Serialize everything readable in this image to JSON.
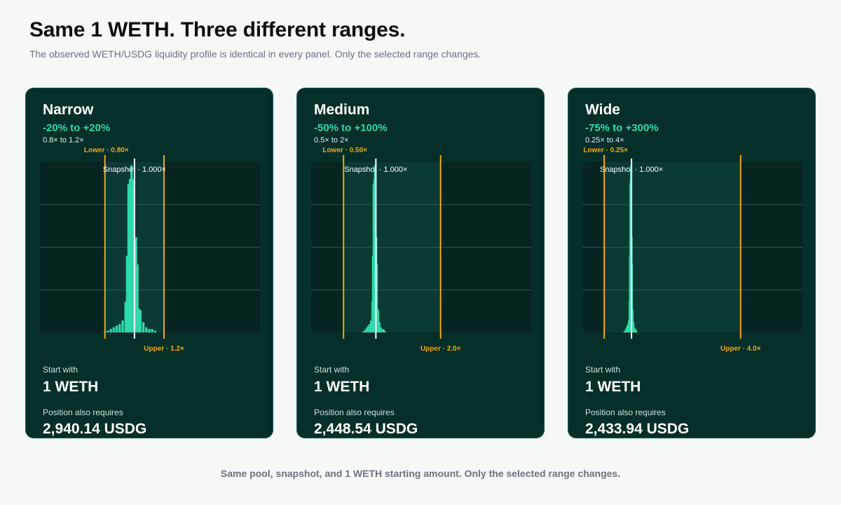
{
  "title": "Same 1 WETH. Three different ranges.",
  "subtitle": "The observed WETH/USDG liquidity profile is identical in every panel. Only the selected range changes.",
  "footer": "Same pool, snapshot, and 1 WETH starting amount. Only the selected range changes.",
  "colors": {
    "page_bg": "#f6f8f7",
    "panel_bg": "#062f29",
    "plot_bg": "#062420",
    "in_range_bg": "#0b3a33",
    "bar": "#2fd9ac",
    "range_line": "#f0a81c",
    "snapshot_line": "#ffffff",
    "accent_text": "#2fd9ac"
  },
  "chart_data": [
    {
      "type": "bar",
      "name": "Narrow",
      "range_pct": "-20% to +20%",
      "range_mult": "0.8× to 1.2×",
      "lower": 0.8,
      "upper": 1.2,
      "snapshot": 1.0,
      "lower_label": "Lower · 0.80×",
      "upper_label": "Upper · 1.2×",
      "snapshot_label": "Snapshot · 1.000×",
      "start_label": "Start with",
      "start_value": "1 WETH",
      "requires_label": "Position also requires",
      "requires_value": "2,940.14 USDG",
      "xlim": [
        0.36,
        1.85
      ],
      "ylim": [
        0,
        1
      ],
      "grid": true
    },
    {
      "type": "bar",
      "name": "Medium",
      "range_pct": "-50% to +100%",
      "range_mult": "0.5× to 2×",
      "lower": 0.5,
      "upper": 2.0,
      "snapshot": 1.0,
      "lower_label": "Lower · 0.50×",
      "upper_label": "Upper · 2.0×",
      "snapshot_label": "Snapshot · 1.000×",
      "start_label": "Start with",
      "start_value": "1 WETH",
      "requires_label": "Position also requires",
      "requires_value": "2,448.54 USDG",
      "xlim": [
        0.0,
        3.4
      ],
      "ylim": [
        0,
        1
      ],
      "grid": true
    },
    {
      "type": "bar",
      "name": "Wide",
      "range_pct": "-75% to +300%",
      "range_mult": "0.25× to 4×",
      "lower": 0.25,
      "upper": 4.0,
      "snapshot": 1.0,
      "lower_label": "Lower · 0.25×",
      "upper_label": "Upper · 4.0×",
      "snapshot_label": "Snapshot · 1.000×",
      "start_label": "Start with",
      "start_value": "1 WETH",
      "requires_label": "Position also requires",
      "requires_value": "2,433.94 USDG",
      "xlim": [
        -0.35,
        5.7
      ],
      "ylim": [
        0,
        1
      ],
      "grid": true
    }
  ],
  "liquidity_profile": {
    "x": [
      0.8,
      0.82,
      0.84,
      0.86,
      0.88,
      0.9,
      0.92,
      0.94,
      0.95,
      0.96,
      0.97,
      0.98,
      0.99,
      1.01,
      1.02,
      1.03,
      1.04,
      1.06,
      1.08,
      1.1,
      1.12,
      1.14
    ],
    "values": [
      0.005,
      0.01,
      0.02,
      0.03,
      0.04,
      0.05,
      0.07,
      0.18,
      0.45,
      0.87,
      0.9,
      0.98,
      0.9,
      0.56,
      0.4,
      0.14,
      0.13,
      0.06,
      0.03,
      0.02,
      0.02,
      0.01
    ]
  }
}
